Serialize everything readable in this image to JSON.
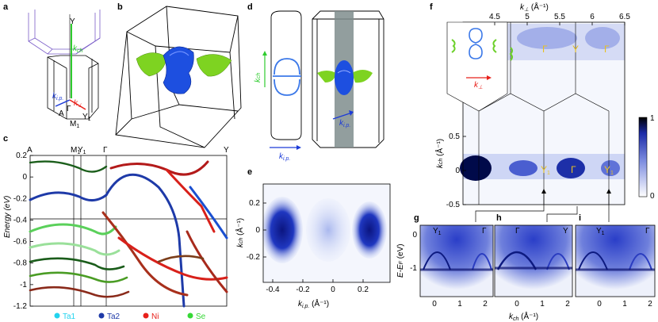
{
  "panels": {
    "a": {
      "label": "a",
      "pts": {
        "Y": "Y",
        "kch": "k",
        "kch_sub": "ch",
        "kip": "k",
        "kip_sub": "i.p.",
        "kperp": "k",
        "kperp_sub": "⊥",
        "A": "A",
        "Gamma": "Γ",
        "M1": "M",
        "M1_sub": "1",
        "Y1": "Y",
        "Y1_sub": "1"
      }
    },
    "b": {
      "label": "b"
    },
    "c": {
      "label": "c",
      "ylabel": "Energy (eV)",
      "yticks": [
        "0.2",
        "0",
        "-0.2",
        "-0.4",
        "-0.6",
        "-0.8",
        "-1",
        "-1.2"
      ],
      "kpath": [
        {
          "t": "A",
          "sub": ""
        },
        {
          "t": "M",
          "sub": "1"
        },
        {
          "t": "Y",
          "sub": "1"
        },
        {
          "t": "Γ",
          "sub": ""
        },
        {
          "t": "Y",
          "sub": ""
        }
      ],
      "legend": [
        {
          "name": "Ta1",
          "color": "#22d3ee"
        },
        {
          "name": "Ta2",
          "color": "#1e3aa8"
        },
        {
          "name": "Ni",
          "color": "#e8201a"
        },
        {
          "name": "Se",
          "color": "#36d836"
        }
      ]
    },
    "d": {
      "label": "d",
      "kch": "k",
      "kch_sub": "ch",
      "kip": "k",
      "kip_sub": "i.p.",
      "kip2": "k",
      "kip2_sub": "i.p."
    },
    "e": {
      "label": "e",
      "ylabel": "k",
      "ylabel_sub": "ch",
      "ylabel_unit": " (Å⁻¹)",
      "xlabel": "k",
      "xlabel_sub": "i.p.",
      "xlabel_unit": " (Å⁻¹)",
      "yticks": [
        "0.2",
        "0",
        "-0.2"
      ],
      "xticks": [
        "-0.4",
        "-0.2",
        "0",
        "0.2"
      ]
    },
    "f": {
      "label": "f",
      "xlabel": "k",
      "xlabel_sub": "⊥",
      "xlabel_unit": " (Å⁻¹)",
      "xticks": [
        "4.5",
        "5",
        "5.5",
        "6",
        "6.5"
      ],
      "ylabel": "k",
      "ylabel_sub": "ch",
      "ylabel_unit": " (Å⁻¹)",
      "yticks": [
        "0.5",
        "0",
        "-0.5"
      ],
      "colorbar": [
        "1",
        "0"
      ],
      "points_top": [
        "Γ",
        "Y",
        "Γ"
      ],
      "points_bottom": [
        {
          "t": "Y",
          "sub": "1"
        },
        {
          "t": "Γ",
          "sub": ""
        },
        {
          "t": "Y",
          "sub": "1"
        }
      ],
      "inset_k": "k",
      "inset_k_sub": "⊥"
    },
    "g": {
      "label": "g",
      "left": "Y",
      "left_sub": "1",
      "right": "Γ"
    },
    "h": {
      "label": "h",
      "left": "Γ",
      "right": "Y"
    },
    "i": {
      "label": "i",
      "left": "Y",
      "left_sub": "1",
      "right": "Γ"
    },
    "ghi": {
      "ylabel": "E-E",
      "ylabel_sub": "F",
      "ylabel_unit": " (eV)",
      "yticks": [
        "0",
        "-1"
      ],
      "xticks": [
        "0",
        "1",
        "2"
      ],
      "xlabel": "k",
      "xlabel_sub": "ch",
      "xlabel_unit": " (Å⁻¹)"
    }
  }
}
